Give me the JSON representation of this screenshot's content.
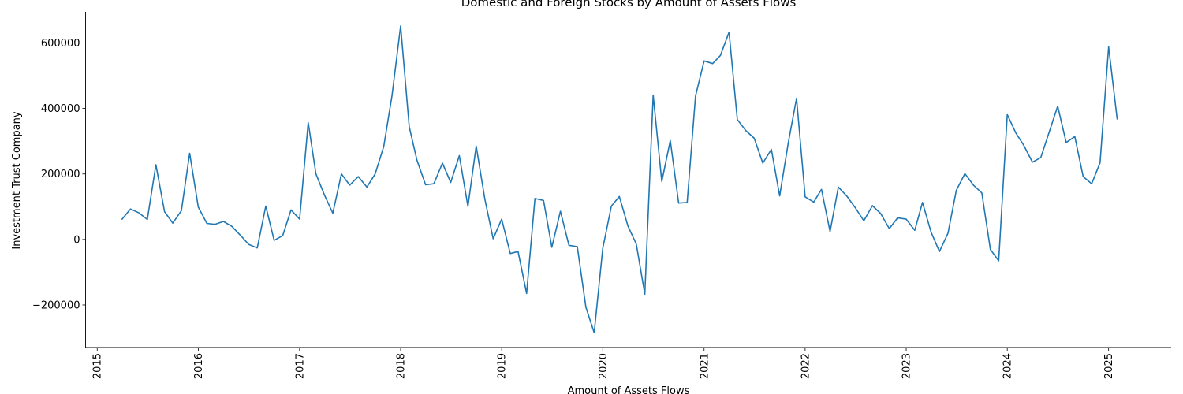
{
  "chart_data": {
    "type": "line",
    "title": "Domestic and Foreign Stocks by Amount of Assets Flows",
    "xlabel": "Amount of Assets Flows",
    "ylabel": "Investment Trust Company",
    "xlim": [
      "2014-11-20",
      "2025-08-15"
    ],
    "ylim": [
      -330000,
      695000
    ],
    "x_ticks": [
      "2015-01-01",
      "2016-01-01",
      "2017-01-01",
      "2018-01-01",
      "2019-01-01",
      "2020-01-01",
      "2021-01-01",
      "2022-01-01",
      "2023-01-01",
      "2024-01-01",
      "2025-01-01"
    ],
    "x_tick_labels": [
      "2015",
      "2016",
      "2017",
      "2018",
      "2019",
      "2020",
      "2021",
      "2022",
      "2023",
      "2024",
      "2025"
    ],
    "y_ticks": [
      -200000,
      0,
      200000,
      400000,
      600000
    ],
    "y_tick_labels": [
      "−200000",
      "0",
      "200000",
      "400000",
      "600000"
    ],
    "grid": false,
    "color": "#1f77b4",
    "series": [
      {
        "x": [
          "2015-04",
          "2015-05",
          "2015-06",
          "2015-07",
          "2015-08",
          "2015-09",
          "2015-10",
          "2015-11",
          "2015-12",
          "2016-01",
          "2016-02",
          "2016-03",
          "2016-04",
          "2016-05",
          "2016-06",
          "2016-07",
          "2016-08",
          "2016-09",
          "2016-10",
          "2016-11",
          "2016-12",
          "2017-01",
          "2017-02",
          "2017-03",
          "2017-04",
          "2017-05",
          "2017-06",
          "2017-07",
          "2017-08",
          "2017-09",
          "2017-10",
          "2017-11",
          "2017-12",
          "2018-01",
          "2018-02",
          "2018-03",
          "2018-04",
          "2018-05",
          "2018-06",
          "2018-07",
          "2018-08",
          "2018-09",
          "2018-10",
          "2018-11",
          "2018-12",
          "2019-01",
          "2019-02",
          "2019-03",
          "2019-04",
          "2019-05",
          "2019-06",
          "2019-07",
          "2019-08",
          "2019-09",
          "2019-10",
          "2019-11",
          "2019-12",
          "2020-01",
          "2020-02",
          "2020-03",
          "2020-04",
          "2020-05",
          "2020-06",
          "2020-07",
          "2020-08",
          "2020-09",
          "2020-10",
          "2020-11",
          "2020-12",
          "2021-01",
          "2021-02",
          "2021-03",
          "2021-04",
          "2021-05",
          "2021-06",
          "2021-07",
          "2021-08",
          "2021-09",
          "2021-10",
          "2021-11",
          "2021-12",
          "2022-01",
          "2022-02",
          "2022-03",
          "2022-04",
          "2022-05",
          "2022-06",
          "2022-07",
          "2022-08",
          "2022-09",
          "2022-10",
          "2022-11",
          "2022-12",
          "2023-01",
          "2023-02",
          "2023-03",
          "2023-04",
          "2023-05",
          "2023-06",
          "2023-07",
          "2023-08",
          "2023-09",
          "2023-10",
          "2023-11",
          "2023-12",
          "2024-01",
          "2024-02",
          "2024-03",
          "2024-04",
          "2024-05",
          "2024-06",
          "2024-07",
          "2024-08",
          "2024-09",
          "2024-10",
          "2024-11",
          "2024-12",
          "2025-01",
          "2025-02"
        ],
        "values": [
          62000,
          93000,
          81000,
          61000,
          228000,
          85000,
          50000,
          88000,
          263000,
          99000,
          49000,
          46000,
          55000,
          40000,
          13000,
          -15000,
          -26000,
          102000,
          -3000,
          12000,
          90000,
          62000,
          357000,
          200000,
          135000,
          80000,
          200000,
          166000,
          192000,
          160000,
          200000,
          284000,
          440000,
          652000,
          344000,
          242000,
          167000,
          170000,
          233000,
          174000,
          256000,
          101000,
          285000,
          124000,
          2000,
          62000,
          -43000,
          -37000,
          -165000,
          125000,
          119000,
          -24000,
          86000,
          -18000,
          -22000,
          -207000,
          -285000,
          -27000,
          102000,
          131000,
          41000,
          -14000,
          -167000,
          441000,
          177000,
          302000,
          111000,
          113000,
          438000,
          545000,
          537000,
          562000,
          633000,
          366000,
          332000,
          309000,
          233000,
          275000,
          133000,
          295000,
          431000,
          130000,
          114000,
          153000,
          24000,
          160000,
          132000,
          97000,
          57000,
          103000,
          79000,
          33000,
          66000,
          62000,
          28000,
          113000,
          22000,
          -37000,
          19000,
          150000,
          201000,
          166000,
          142000,
          -31000,
          -65000,
          381000,
          325000,
          287000,
          236000,
          250000,
          329000,
          407000,
          296000,
          314000,
          192000,
          170000,
          234000,
          588000,
          368000
        ]
      }
    ]
  }
}
